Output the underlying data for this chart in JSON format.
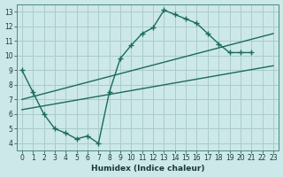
{
  "bg_color": "#cce8e8",
  "grid_color": "#aacccc",
  "line_color": "#1a6b5a",
  "line_width": 1.0,
  "marker": "+",
  "marker_size": 4,
  "marker_lw": 1.0,
  "xlabel": "Humidex (Indice chaleur)",
  "xlabel_fontsize": 6.5,
  "tick_fontsize": 5.5,
  "xlim": [
    -0.5,
    23.5
  ],
  "ylim": [
    3.5,
    13.5
  ],
  "xtick_vals": [
    0,
    1,
    2,
    3,
    4,
    5,
    6,
    7,
    8,
    9,
    10,
    11,
    12,
    13,
    14,
    15,
    16,
    17,
    18,
    19,
    20,
    21,
    22,
    23
  ],
  "ytick_vals": [
    4,
    5,
    6,
    7,
    8,
    9,
    10,
    11,
    12,
    13
  ],
  "main_curve_x": [
    0,
    1,
    2,
    3,
    4,
    5,
    6,
    7,
    8,
    9,
    10,
    11,
    12,
    13,
    14,
    15,
    16,
    17,
    18,
    19,
    20,
    21
  ],
  "main_curve_y": [
    9.0,
    7.5,
    6.0,
    5.0,
    4.7,
    4.3,
    4.5,
    4.0,
    7.5,
    9.8,
    10.7,
    11.5,
    11.9,
    13.1,
    12.8,
    12.5,
    12.2,
    11.5,
    10.8,
    10.2,
    10.2,
    10.2
  ],
  "reg_line1_x": [
    0,
    23
  ],
  "reg_line1_y": [
    7.0,
    11.5
  ],
  "reg_line2_x": [
    0,
    23
  ],
  "reg_line2_y": [
    6.3,
    9.3
  ]
}
